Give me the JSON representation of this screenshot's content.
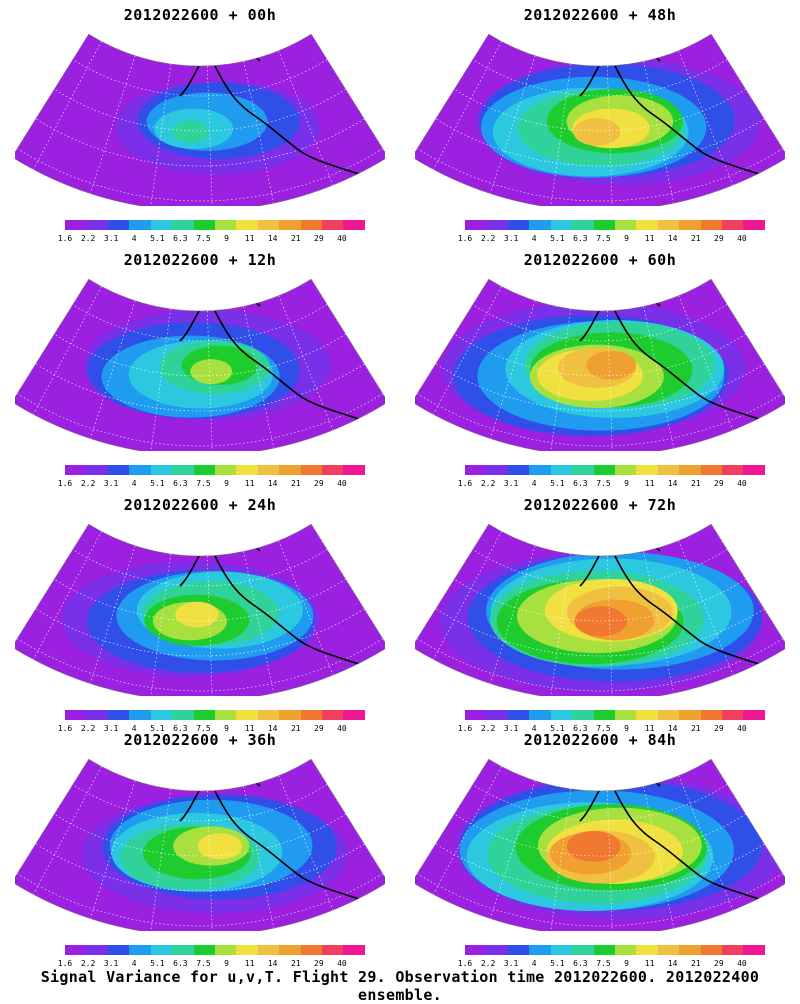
{
  "panels": [
    {
      "title": "2012022600 + 00h",
      "intensity": 0.25
    },
    {
      "title": "2012022600 + 48h",
      "intensity": 0.65
    },
    {
      "title": "2012022600 + 12h",
      "intensity": 0.45
    },
    {
      "title": "2012022600 + 60h",
      "intensity": 0.75
    },
    {
      "title": "2012022600 + 24h",
      "intensity": 0.5
    },
    {
      "title": "2012022600 + 72h",
      "intensity": 0.85
    },
    {
      "title": "2012022600 + 36h",
      "intensity": 0.55
    },
    {
      "title": "2012022600 + 84h",
      "intensity": 0.9
    }
  ],
  "colorbar": {
    "colors": [
      "#9b20e0",
      "#7a2fe8",
      "#2f4fe8",
      "#1f9bf0",
      "#2cc8e0",
      "#2fd39a",
      "#1fcc2f",
      "#a8e040",
      "#f0e040",
      "#f0c040",
      "#f0a030",
      "#f07830",
      "#f04060",
      "#f01890"
    ],
    "labels": [
      "1.6",
      "2.2",
      "3.1",
      "4",
      "5.1",
      "6.3",
      "7.5",
      "9",
      "11",
      "14",
      "21",
      "29",
      "40"
    ]
  },
  "footer": "Signal Variance for u,v,T. Flight 29. Observation time 2012022600. 2012022400 ensemble."
}
